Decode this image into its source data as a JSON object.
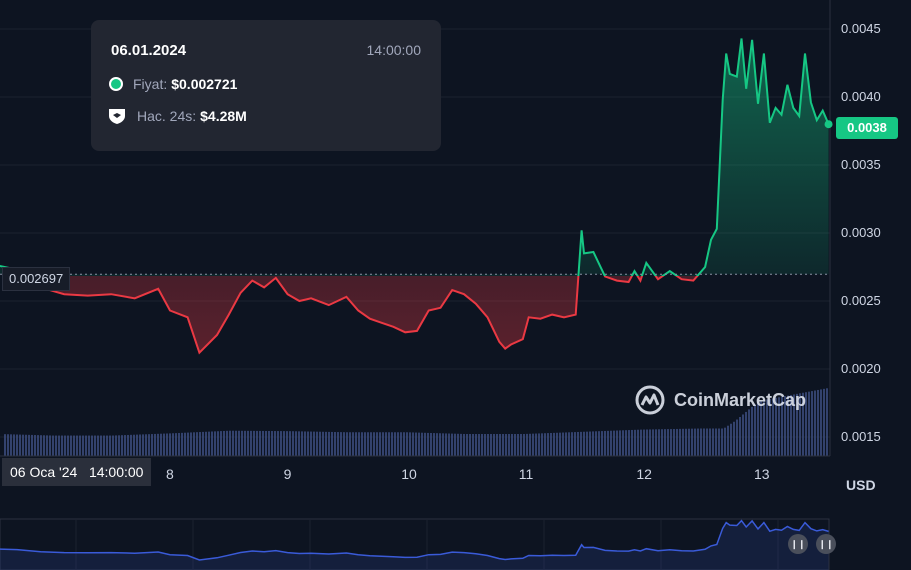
{
  "tooltip": {
    "date": "06.01.2024",
    "time": "14:00:00",
    "price_label": "Fiyat:",
    "price_value": "$0.002721",
    "volume_label": "Hac. 24s:",
    "volume_value": "$4.28M"
  },
  "badges": {
    "current_price": "0.0038",
    "reference_price": "0.002697",
    "crosshair_date": "06 Oca '24",
    "crosshair_time": "14:00:00"
  },
  "currency": "USD",
  "watermark": "CoinMarketCap",
  "colors": {
    "up": "#16c784",
    "down": "#ea3943",
    "background": "#0d1421",
    "volume": "#3b4a7a",
    "navigator": "#3a5bd9"
  },
  "chart_data": {
    "type": "line",
    "title": "",
    "xlabel": "",
    "ylabel": "USD",
    "x_ticks": [
      "8",
      "9",
      "10",
      "11",
      "12",
      "13"
    ],
    "y_ticks": [
      "0.0015",
      "0.0020",
      "0.0025",
      "0.0030",
      "0.0035",
      "0.0040",
      "0.0045"
    ],
    "ylim": [
      0.0013,
      0.0046
    ],
    "xlim": [
      6.54,
      13.6
    ],
    "baseline": 0.002697,
    "grid": true,
    "series": [
      {
        "x": [
          6.54,
          6.7,
          6.9,
          7.1,
          7.3,
          7.5,
          7.7,
          7.9,
          8.0,
          8.15,
          8.25,
          8.4,
          8.5,
          8.6,
          8.7,
          8.8,
          8.9,
          9.0,
          9.1,
          9.2,
          9.35,
          9.5,
          9.6,
          9.7,
          9.8,
          9.9,
          10.0,
          10.1,
          10.2,
          10.3,
          10.4,
          10.5,
          10.6,
          10.7,
          10.8,
          10.85,
          10.9,
          11.0,
          11.05,
          11.15,
          11.25,
          11.35,
          11.45,
          11.5,
          11.52,
          11.6,
          11.7,
          11.8,
          11.9,
          11.95,
          12.0,
          12.05,
          12.15,
          12.25,
          12.35,
          12.45,
          12.55,
          12.6,
          12.65,
          12.7,
          12.73,
          12.76,
          12.82,
          12.86,
          12.9,
          12.95,
          13.0,
          13.05,
          13.1,
          13.15,
          13.2,
          13.25,
          13.3,
          13.35,
          13.4,
          13.45,
          13.5,
          13.55,
          13.6
        ],
        "y": [
          0.00276,
          0.00273,
          0.0026,
          0.00255,
          0.00254,
          0.00255,
          0.00252,
          0.00259,
          0.00243,
          0.00238,
          0.00212,
          0.00225,
          0.0024,
          0.00256,
          0.00265,
          0.0026,
          0.00267,
          0.00255,
          0.0025,
          0.00252,
          0.00247,
          0.00253,
          0.00243,
          0.00237,
          0.00234,
          0.00231,
          0.00227,
          0.00228,
          0.00243,
          0.00245,
          0.00258,
          0.00255,
          0.00248,
          0.00238,
          0.0022,
          0.00215,
          0.00218,
          0.00222,
          0.00238,
          0.00237,
          0.0024,
          0.00238,
          0.0024,
          0.00302,
          0.00285,
          0.00286,
          0.00268,
          0.00265,
          0.00264,
          0.00272,
          0.00265,
          0.00278,
          0.00266,
          0.00272,
          0.00266,
          0.00265,
          0.00275,
          0.00295,
          0.00303,
          0.00398,
          0.00432,
          0.00417,
          0.00415,
          0.00443,
          0.00406,
          0.00442,
          0.00395,
          0.00432,
          0.00381,
          0.00392,
          0.00387,
          0.00409,
          0.00392,
          0.00386,
          0.00432,
          0.00396,
          0.00383,
          0.0039,
          0.0038
        ]
      }
    ],
    "volume": {
      "x": [
        6.54,
        7.0,
        7.5,
        8.0,
        8.5,
        9.0,
        9.5,
        10.0,
        10.5,
        11.0,
        11.5,
        12.0,
        12.5,
        12.7,
        12.8,
        13.0,
        13.2,
        13.4,
        13.6
      ],
      "values": [
        1.0,
        0.93,
        0.93,
        1.03,
        1.15,
        1.13,
        1.08,
        1.08,
        1.0,
        1.0,
        1.1,
        1.2,
        1.25,
        1.25,
        1.6,
        2.5,
        2.7,
        2.9,
        3.1
      ]
    }
  }
}
